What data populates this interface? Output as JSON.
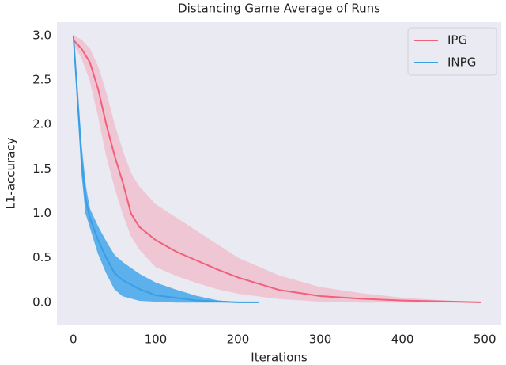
{
  "chart_data": {
    "type": "line",
    "title": "Distancing Game Average of Runs",
    "x_label": "Iterations",
    "y_label": "L1-accuracy",
    "xlim": [
      -20,
      520
    ],
    "ylim": [
      -0.25,
      3.15
    ],
    "xticks": [
      0,
      100,
      200,
      300,
      400,
      500
    ],
    "yticks": [
      {
        "value": 0,
        "label": "0.0"
      },
      {
        "value": 0.5,
        "label": "0.5"
      },
      {
        "value": 1,
        "label": "1.0"
      },
      {
        "value": 1.5,
        "label": "1.5"
      },
      {
        "value": 2,
        "label": "2.0"
      },
      {
        "value": 2.5,
        "label": "2.5"
      },
      {
        "value": 3,
        "label": "3.0"
      }
    ],
    "grid": false,
    "legend": "upper right",
    "background": "#eaeaf2",
    "series": [
      {
        "name": "IPG",
        "color": "#f0607a",
        "band_color": "#efc6d3",
        "x": [
          0,
          10,
          20,
          30,
          40,
          50,
          60,
          70,
          80,
          100,
          125,
          150,
          175,
          200,
          250,
          300,
          350,
          400,
          450,
          495
        ],
        "values": [
          2.95,
          2.85,
          2.7,
          2.4,
          2.0,
          1.65,
          1.35,
          1.0,
          0.85,
          0.7,
          0.57,
          0.47,
          0.37,
          0.28,
          0.14,
          0.07,
          0.04,
          0.02,
          0.01,
          0.0
        ],
        "upper": [
          3.0,
          2.95,
          2.85,
          2.65,
          2.35,
          2.0,
          1.7,
          1.45,
          1.3,
          1.1,
          0.95,
          0.8,
          0.65,
          0.5,
          0.3,
          0.17,
          0.1,
          0.05,
          0.02,
          0.0
        ],
        "lower": [
          2.9,
          2.75,
          2.5,
          2.1,
          1.65,
          1.3,
          1.0,
          0.75,
          0.6,
          0.4,
          0.3,
          0.22,
          0.15,
          0.1,
          0.04,
          0.01,
          0.0,
          0.0,
          0.0,
          0.0
        ]
      },
      {
        "name": "INPG",
        "color": "#3a9ee4",
        "band_color": "#5cb0ec",
        "x": [
          0,
          5,
          10,
          15,
          20,
          30,
          40,
          50,
          60,
          80,
          100,
          125,
          150,
          175,
          200,
          225
        ],
        "values": [
          3.0,
          2.3,
          1.6,
          1.15,
          0.95,
          0.7,
          0.5,
          0.33,
          0.25,
          0.15,
          0.08,
          0.05,
          0.02,
          0.01,
          0.0,
          0.0
        ],
        "upper": [
          3.0,
          2.4,
          1.75,
          1.3,
          1.05,
          0.85,
          0.68,
          0.53,
          0.45,
          0.32,
          0.22,
          0.14,
          0.07,
          0.02,
          0.0,
          0.0
        ],
        "lower": [
          3.0,
          2.2,
          1.45,
          1.0,
          0.85,
          0.55,
          0.33,
          0.15,
          0.07,
          0.02,
          0.01,
          0.0,
          0.0,
          0.0,
          0.0,
          0.0
        ]
      }
    ]
  }
}
